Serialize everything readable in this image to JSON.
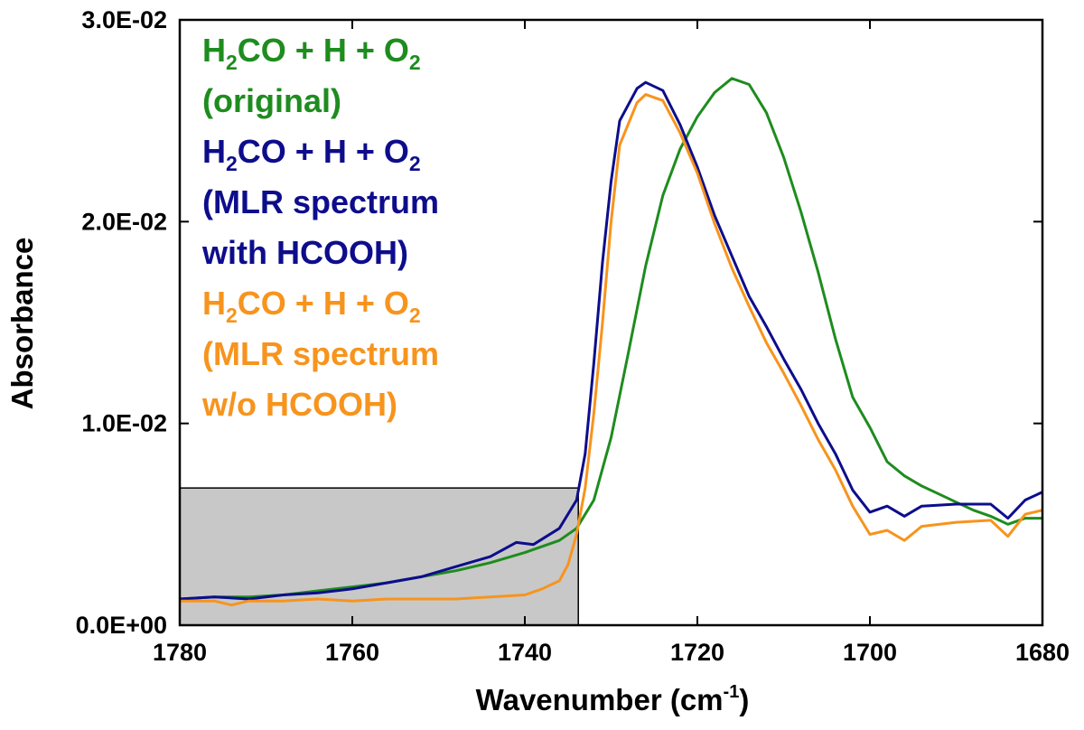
{
  "chart_data": {
    "type": "line",
    "xlabel": "Wavenumber",
    "xlabel_unit_open": " (cm",
    "xlabel_unit_sup": "-1",
    "xlabel_unit_close": ")",
    "ylabel": "Absorbance",
    "xlim": [
      1780,
      1680
    ],
    "ylim": [
      0,
      0.03
    ],
    "x_ticks": [
      1780,
      1760,
      1740,
      1720,
      1700,
      1680
    ],
    "x_tick_labels": [
      "1780",
      "1760",
      "1740",
      "1720",
      "1700",
      "1680"
    ],
    "y_ticks": [
      0,
      0.01,
      0.02,
      0.03
    ],
    "y_tick_labels": [
      "0.0E+00",
      "1.0E-02",
      "2.0E-02",
      "3.0E-02"
    ],
    "highlight_region": {
      "x": [
        1780,
        1733.8
      ],
      "y": [
        0,
        0.0068
      ],
      "color": "#c8c8c8"
    },
    "legend_position": "top-left",
    "series": [
      {
        "name": "H2CO + H + O2 (original)",
        "label_lines": [
          {
            "base": "H",
            "sub": "2",
            "rest": "CO + H + O",
            "sub2": "2"
          },
          {
            "text": "(original)"
          }
        ],
        "color": "#1e8c1e",
        "points": [
          [
            1780,
            0.0013
          ],
          [
            1776,
            0.0014
          ],
          [
            1772,
            0.0014
          ],
          [
            1768,
            0.0015
          ],
          [
            1764,
            0.0017
          ],
          [
            1760,
            0.0019
          ],
          [
            1756,
            0.0021
          ],
          [
            1752,
            0.0024
          ],
          [
            1748,
            0.0027
          ],
          [
            1744,
            0.0031
          ],
          [
            1740,
            0.0036
          ],
          [
            1736,
            0.0042
          ],
          [
            1734,
            0.0048
          ],
          [
            1732,
            0.0062
          ],
          [
            1730,
            0.0093
          ],
          [
            1728,
            0.0135
          ],
          [
            1726,
            0.0178
          ],
          [
            1724,
            0.0213
          ],
          [
            1722,
            0.0236
          ],
          [
            1720,
            0.0252
          ],
          [
            1718,
            0.0264
          ],
          [
            1716,
            0.0271
          ],
          [
            1714,
            0.0268
          ],
          [
            1712,
            0.0254
          ],
          [
            1710,
            0.0232
          ],
          [
            1708,
            0.0205
          ],
          [
            1706,
            0.0175
          ],
          [
            1704,
            0.0142
          ],
          [
            1702,
            0.0113
          ],
          [
            1700,
            0.0098
          ],
          [
            1698,
            0.0081
          ],
          [
            1696,
            0.0074
          ],
          [
            1694,
            0.0069
          ],
          [
            1692,
            0.0065
          ],
          [
            1690,
            0.0061
          ],
          [
            1688,
            0.0057
          ],
          [
            1686,
            0.0054
          ],
          [
            1684,
            0.005
          ],
          [
            1682,
            0.0053
          ],
          [
            1680,
            0.0053
          ]
        ]
      },
      {
        "name": "H2CO + H + O2 (MLR spectrum with HCOOH)",
        "label_lines": [
          {
            "base": "H",
            "sub": "2",
            "rest": "CO + H + O",
            "sub2": "2"
          },
          {
            "text": "(MLR spectrum"
          },
          {
            "text": "with HCOOH)"
          }
        ],
        "color": "#0d0d8c",
        "points": [
          [
            1780,
            0.0013
          ],
          [
            1776,
            0.0014
          ],
          [
            1772,
            0.0013
          ],
          [
            1768,
            0.0015
          ],
          [
            1764,
            0.0016
          ],
          [
            1760,
            0.0018
          ],
          [
            1756,
            0.0021
          ],
          [
            1752,
            0.0024
          ],
          [
            1748,
            0.0029
          ],
          [
            1744,
            0.0034
          ],
          [
            1741,
            0.0041
          ],
          [
            1739,
            0.004
          ],
          [
            1736,
            0.0048
          ],
          [
            1734,
            0.0062
          ],
          [
            1733,
            0.0085
          ],
          [
            1732,
            0.013
          ],
          [
            1731,
            0.018
          ],
          [
            1730,
            0.022
          ],
          [
            1729,
            0.025
          ],
          [
            1727,
            0.0266
          ],
          [
            1726,
            0.0269
          ],
          [
            1724,
            0.0265
          ],
          [
            1722,
            0.0248
          ],
          [
            1720,
            0.0227
          ],
          [
            1718,
            0.0203
          ],
          [
            1716,
            0.0183
          ],
          [
            1714,
            0.0163
          ],
          [
            1712,
            0.0148
          ],
          [
            1710,
            0.0132
          ],
          [
            1708,
            0.0117
          ],
          [
            1706,
            0.01
          ],
          [
            1704,
            0.0085
          ],
          [
            1702,
            0.0067
          ],
          [
            1700,
            0.0056
          ],
          [
            1698,
            0.0059
          ],
          [
            1696,
            0.0054
          ],
          [
            1694,
            0.0059
          ],
          [
            1690,
            0.006
          ],
          [
            1686,
            0.006
          ],
          [
            1684,
            0.0053
          ],
          [
            1682,
            0.0062
          ],
          [
            1680,
            0.0066
          ]
        ]
      },
      {
        "name": "H2CO + H + O2 (MLR spectrum w/o HCOOH)",
        "label_lines": [
          {
            "base": "H",
            "sub": "2",
            "rest": "CO + H + O",
            "sub2": "2"
          },
          {
            "text": "(MLR spectrum"
          },
          {
            "text": "w/o HCOOH)"
          }
        ],
        "color": "#f7941d",
        "points": [
          [
            1780,
            0.0012
          ],
          [
            1776,
            0.0012
          ],
          [
            1774,
            0.001
          ],
          [
            1772,
            0.0012
          ],
          [
            1768,
            0.0012
          ],
          [
            1764,
            0.0013
          ],
          [
            1760,
            0.0012
          ],
          [
            1756,
            0.0013
          ],
          [
            1752,
            0.0013
          ],
          [
            1748,
            0.0013
          ],
          [
            1744,
            0.0014
          ],
          [
            1740,
            0.0015
          ],
          [
            1738,
            0.0018
          ],
          [
            1736,
            0.0022
          ],
          [
            1735,
            0.003
          ],
          [
            1734,
            0.0045
          ],
          [
            1733,
            0.0068
          ],
          [
            1732,
            0.0105
          ],
          [
            1731,
            0.015
          ],
          [
            1730,
            0.02
          ],
          [
            1729,
            0.0238
          ],
          [
            1727,
            0.0259
          ],
          [
            1726,
            0.0263
          ],
          [
            1724,
            0.026
          ],
          [
            1722,
            0.0244
          ],
          [
            1720,
            0.0224
          ],
          [
            1718,
            0.0199
          ],
          [
            1716,
            0.0177
          ],
          [
            1714,
            0.0158
          ],
          [
            1712,
            0.014
          ],
          [
            1710,
            0.0125
          ],
          [
            1708,
            0.0109
          ],
          [
            1706,
            0.0092
          ],
          [
            1704,
            0.0077
          ],
          [
            1702,
            0.0059
          ],
          [
            1700,
            0.0045
          ],
          [
            1698,
            0.0047
          ],
          [
            1696,
            0.0042
          ],
          [
            1694,
            0.0049
          ],
          [
            1690,
            0.0051
          ],
          [
            1686,
            0.0052
          ],
          [
            1684,
            0.0044
          ],
          [
            1682,
            0.0055
          ],
          [
            1680,
            0.0057
          ]
        ]
      }
    ]
  }
}
